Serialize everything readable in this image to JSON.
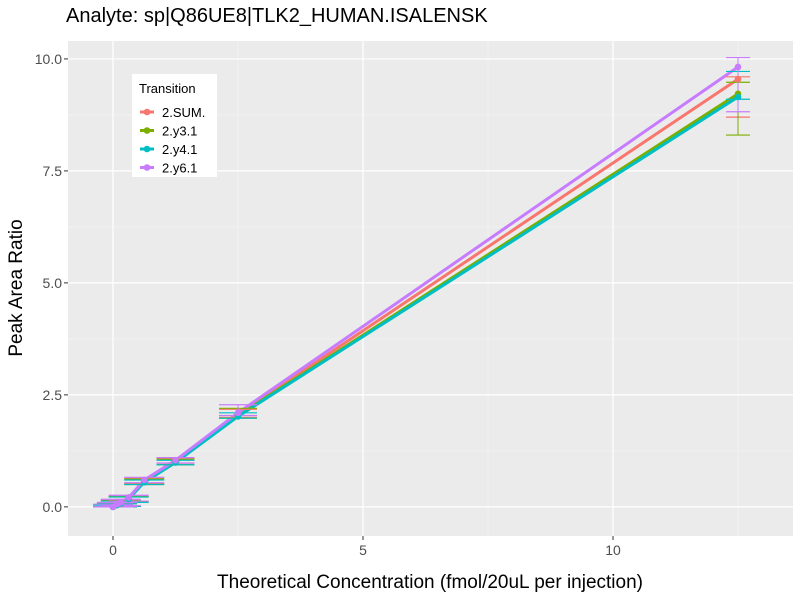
{
  "chart_data": {
    "type": "line",
    "title": "Analyte: sp|Q86UE8|TLK2_HUMAN.ISALENSK",
    "xlabel": "Theoretical Concentration (fmol/20uL per injection)",
    "ylabel": "Peak Area Ratio",
    "xlim": [
      -0.9,
      13.6
    ],
    "ylim": [
      -0.65,
      10.4
    ],
    "x_ticks": [
      0,
      5,
      10
    ],
    "x_tick_labels": [
      "0",
      "5",
      "10"
    ],
    "y_ticks": [
      0.0,
      2.5,
      5.0,
      7.5,
      10.0
    ],
    "y_tick_labels": [
      "0.0",
      "2.5",
      "5.0",
      "7.5",
      "10.0"
    ],
    "grid": true,
    "legend": {
      "title": "Transition",
      "position": "top-left"
    },
    "x": [
      0,
      0.078,
      0.156,
      0.313,
      0.625,
      1.25,
      2.5,
      12.5
    ],
    "series": [
      {
        "name": "2.SUM.",
        "color": "#F8766D",
        "values": [
          0.0,
          0.05,
          0.09,
          0.2,
          0.58,
          1.02,
          2.06,
          9.55
        ],
        "error_low": [
          0.0,
          0.0,
          0.02,
          0.12,
          0.52,
          0.95,
          2.0,
          8.7
        ],
        "error_high": [
          0.05,
          0.08,
          0.15,
          0.24,
          0.64,
          1.08,
          2.18,
          9.6
        ]
      },
      {
        "name": "2.y3.1",
        "color": "#7CAE00",
        "values": [
          0.0,
          0.04,
          0.08,
          0.19,
          0.56,
          1.0,
          2.04,
          9.22
        ],
        "error_low": [
          0.0,
          0.0,
          0.01,
          0.11,
          0.5,
          0.94,
          1.98,
          8.3
        ],
        "error_high": [
          0.05,
          0.07,
          0.14,
          0.23,
          0.62,
          1.06,
          2.2,
          9.48
        ]
      },
      {
        "name": "2.y4.1",
        "color": "#00BFC4",
        "values": [
          0.0,
          0.04,
          0.08,
          0.18,
          0.55,
          0.99,
          2.02,
          9.15
        ],
        "error_low": [
          0.0,
          0.0,
          0.01,
          0.1,
          0.5,
          0.94,
          1.98,
          9.1
        ],
        "error_high": [
          0.04,
          0.07,
          0.13,
          0.22,
          0.6,
          1.04,
          2.1,
          9.72
        ]
      },
      {
        "name": "2.y6.1",
        "color": "#C77CFF",
        "values": [
          0.0,
          0.06,
          0.1,
          0.21,
          0.6,
          1.04,
          2.1,
          9.82
        ],
        "error_low": [
          0.0,
          0.01,
          0.03,
          0.13,
          0.54,
          0.98,
          2.04,
          8.82
        ],
        "error_high": [
          0.06,
          0.1,
          0.17,
          0.26,
          0.66,
          1.1,
          2.28,
          10.03
        ]
      }
    ]
  }
}
